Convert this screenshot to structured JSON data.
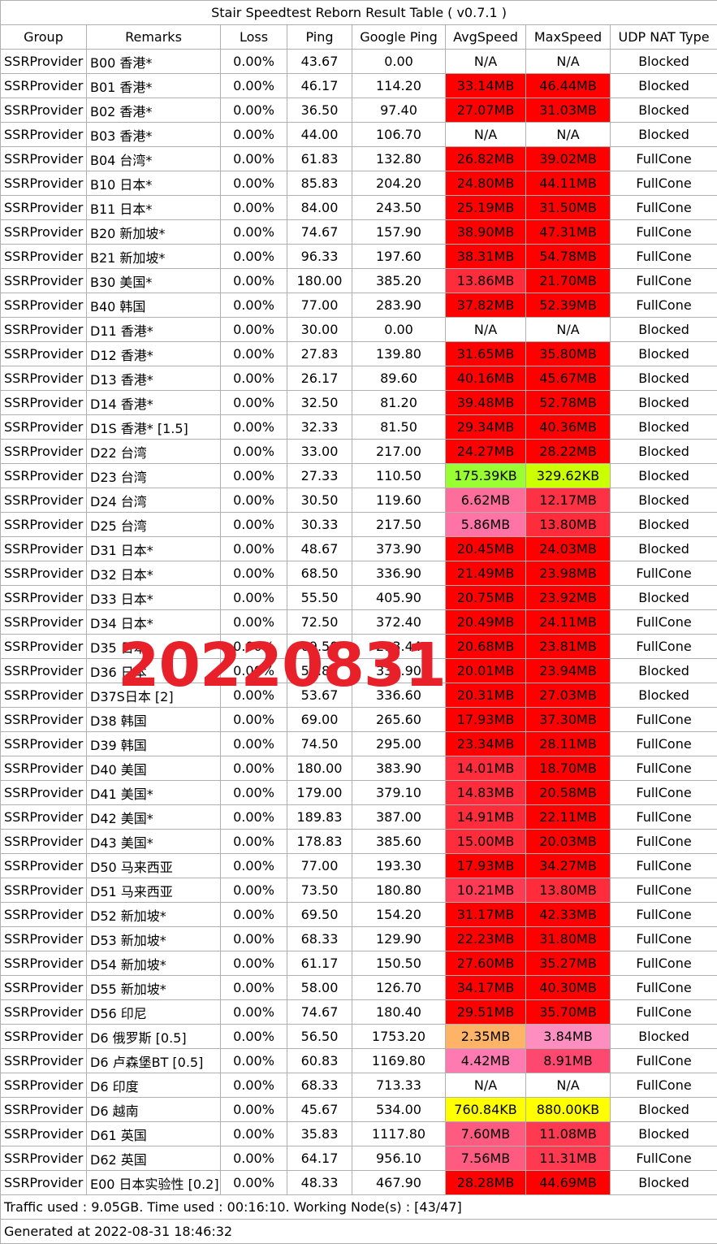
{
  "title": "Stair Speedtest Reborn Result Table ( v0.7.1 )",
  "columns": [
    "Group",
    "Remarks",
    "Loss",
    "Ping",
    "Google Ping",
    "AvgSpeed",
    "MaxSpeed",
    "UDP NAT Type"
  ],
  "rows": [
    {
      "group": "SSRProvider",
      "remarks": "B00 香港*",
      "loss": "0.00%",
      "ping": "43.67",
      "gping": "0.00",
      "avg": "N/A",
      "max": "N/A",
      "nat": "Blocked",
      "avg_color": "#ffffff",
      "max_color": "#ffffff"
    },
    {
      "group": "SSRProvider",
      "remarks": "B01 香港*",
      "loss": "0.00%",
      "ping": "46.17",
      "gping": "114.20",
      "avg": "33.14MB",
      "max": "46.44MB",
      "nat": "Blocked",
      "avg_color": "#ff0000",
      "max_color": "#ff0000"
    },
    {
      "group": "SSRProvider",
      "remarks": "B02 香港*",
      "loss": "0.00%",
      "ping": "36.50",
      "gping": "97.40",
      "avg": "27.07MB",
      "max": "31.03MB",
      "nat": "Blocked",
      "avg_color": "#ff0000",
      "max_color": "#ff0000"
    },
    {
      "group": "SSRProvider",
      "remarks": "B03 香港*",
      "loss": "0.00%",
      "ping": "44.00",
      "gping": "106.70",
      "avg": "N/A",
      "max": "N/A",
      "nat": "Blocked",
      "avg_color": "#ffffff",
      "max_color": "#ffffff"
    },
    {
      "group": "SSRProvider",
      "remarks": "B04 台湾*",
      "loss": "0.00%",
      "ping": "61.83",
      "gping": "132.80",
      "avg": "26.82MB",
      "max": "39.02MB",
      "nat": "FullCone",
      "avg_color": "#ff0000",
      "max_color": "#ff0000"
    },
    {
      "group": "SSRProvider",
      "remarks": "B10 日本*",
      "loss": "0.00%",
      "ping": "85.83",
      "gping": "204.20",
      "avg": "24.80MB",
      "max": "44.11MB",
      "nat": "FullCone",
      "avg_color": "#ff0000",
      "max_color": "#ff0000"
    },
    {
      "group": "SSRProvider",
      "remarks": "B11 日本*",
      "loss": "0.00%",
      "ping": "84.00",
      "gping": "243.50",
      "avg": "25.19MB",
      "max": "31.50MB",
      "nat": "FullCone",
      "avg_color": "#ff0000",
      "max_color": "#ff0000"
    },
    {
      "group": "SSRProvider",
      "remarks": "B20 新加坡*",
      "loss": "0.00%",
      "ping": "74.67",
      "gping": "157.90",
      "avg": "38.90MB",
      "max": "47.31MB",
      "nat": "FullCone",
      "avg_color": "#ff0000",
      "max_color": "#ff0000"
    },
    {
      "group": "SSRProvider",
      "remarks": "B21 新加坡*",
      "loss": "0.00%",
      "ping": "96.33",
      "gping": "197.60",
      "avg": "38.31MB",
      "max": "54.78MB",
      "nat": "FullCone",
      "avg_color": "#ff0000",
      "max_color": "#ff0000"
    },
    {
      "group": "SSRProvider",
      "remarks": "B30 美国*",
      "loss": "0.00%",
      "ping": "180.00",
      "gping": "385.20",
      "avg": "13.86MB",
      "max": "21.70MB",
      "nat": "FullCone",
      "avg_color": "#ff2c3c",
      "max_color": "#ff0000"
    },
    {
      "group": "SSRProvider",
      "remarks": "B40 韩国",
      "loss": "0.00%",
      "ping": "77.00",
      "gping": "283.90",
      "avg": "37.82MB",
      "max": "52.39MB",
      "nat": "FullCone",
      "avg_color": "#ff0000",
      "max_color": "#ff0000"
    },
    {
      "group": "SSRProvider",
      "remarks": "D11 香港*",
      "loss": "0.00%",
      "ping": "30.00",
      "gping": "0.00",
      "avg": "N/A",
      "max": "N/A",
      "nat": "Blocked",
      "avg_color": "#ffffff",
      "max_color": "#ffffff"
    },
    {
      "group": "SSRProvider",
      "remarks": "D12 香港*",
      "loss": "0.00%",
      "ping": "27.83",
      "gping": "139.80",
      "avg": "31.65MB",
      "max": "35.80MB",
      "nat": "Blocked",
      "avg_color": "#ff0000",
      "max_color": "#ff0000"
    },
    {
      "group": "SSRProvider",
      "remarks": "D13 香港*",
      "loss": "0.00%",
      "ping": "26.17",
      "gping": "89.60",
      "avg": "40.16MB",
      "max": "45.67MB",
      "nat": "Blocked",
      "avg_color": "#ff0000",
      "max_color": "#ff0000"
    },
    {
      "group": "SSRProvider",
      "remarks": "D14 香港*",
      "loss": "0.00%",
      "ping": "32.50",
      "gping": "81.20",
      "avg": "39.48MB",
      "max": "52.78MB",
      "nat": "Blocked",
      "avg_color": "#ff0000",
      "max_color": "#ff0000"
    },
    {
      "group": "SSRProvider",
      "remarks": "D1S 香港* [1.5]",
      "loss": "0.00%",
      "ping": "32.33",
      "gping": "81.50",
      "avg": "29.34MB",
      "max": "40.36MB",
      "nat": "Blocked",
      "avg_color": "#ff0000",
      "max_color": "#ff0000"
    },
    {
      "group": "SSRProvider",
      "remarks": "D22 台湾",
      "loss": "0.00%",
      "ping": "33.00",
      "gping": "217.00",
      "avg": "24.27MB",
      "max": "28.22MB",
      "nat": "Blocked",
      "avg_color": "#ff0000",
      "max_color": "#ff0000"
    },
    {
      "group": "SSRProvider",
      "remarks": "D23 台湾",
      "loss": "0.00%",
      "ping": "27.33",
      "gping": "110.50",
      "avg": "175.39KB",
      "max": "329.62KB",
      "nat": "Blocked",
      "avg_color": "#99ff33",
      "max_color": "#ccff00"
    },
    {
      "group": "SSRProvider",
      "remarks": "D24 台湾",
      "loss": "0.00%",
      "ping": "30.50",
      "gping": "119.60",
      "avg": "6.62MB",
      "max": "12.17MB",
      "nat": "Blocked",
      "avg_color": "#ff6e9a",
      "max_color": "#ff3245"
    },
    {
      "group": "SSRProvider",
      "remarks": "D25 台湾",
      "loss": "0.00%",
      "ping": "30.33",
      "gping": "217.50",
      "avg": "5.86MB",
      "max": "13.80MB",
      "nat": "Blocked",
      "avg_color": "#ff74a4",
      "max_color": "#ff2c3c"
    },
    {
      "group": "SSRProvider",
      "remarks": "D31 日本*",
      "loss": "0.00%",
      "ping": "48.67",
      "gping": "373.90",
      "avg": "20.45MB",
      "max": "24.03MB",
      "nat": "Blocked",
      "avg_color": "#ff0000",
      "max_color": "#ff0000"
    },
    {
      "group": "SSRProvider",
      "remarks": "D32 日本*",
      "loss": "0.00%",
      "ping": "68.50",
      "gping": "336.90",
      "avg": "21.49MB",
      "max": "23.98MB",
      "nat": "FullCone",
      "avg_color": "#ff0000",
      "max_color": "#ff0000"
    },
    {
      "group": "SSRProvider",
      "remarks": "D33 日本*",
      "loss": "0.00%",
      "ping": "55.50",
      "gping": "405.90",
      "avg": "20.75MB",
      "max": "23.92MB",
      "nat": "Blocked",
      "avg_color": "#ff0000",
      "max_color": "#ff0000"
    },
    {
      "group": "SSRProvider",
      "remarks": "D34 日本*",
      "loss": "0.00%",
      "ping": "72.50",
      "gping": "372.40",
      "avg": "20.49MB",
      "max": "24.11MB",
      "nat": "FullCone",
      "avg_color": "#ff0000",
      "max_color": "#ff0000"
    },
    {
      "group": "SSRProvider",
      "remarks": "D35 日本",
      "loss": "0.00%",
      "ping": "69.50",
      "gping": "293.44",
      "avg": "20.68MB",
      "max": "23.81MB",
      "nat": "FullCone",
      "avg_color": "#ff0000",
      "max_color": "#ff0000"
    },
    {
      "group": "SSRProvider",
      "remarks": "D36 日本",
      "loss": "0.00%",
      "ping": "58.83",
      "gping": "332.90",
      "avg": "20.01MB",
      "max": "23.94MB",
      "nat": "Blocked",
      "avg_color": "#ff0000",
      "max_color": "#ff0000"
    },
    {
      "group": "SSRProvider",
      "remarks": "D37S日本 [2]",
      "loss": "0.00%",
      "ping": "53.67",
      "gping": "336.60",
      "avg": "20.31MB",
      "max": "27.03MB",
      "nat": "Blocked",
      "avg_color": "#ff0000",
      "max_color": "#ff0000"
    },
    {
      "group": "SSRProvider",
      "remarks": "D38 韩国",
      "loss": "0.00%",
      "ping": "69.00",
      "gping": "265.60",
      "avg": "17.93MB",
      "max": "37.30MB",
      "nat": "FullCone",
      "avg_color": "#ff0000",
      "max_color": "#ff0000"
    },
    {
      "group": "SSRProvider",
      "remarks": "D39 韩国",
      "loss": "0.00%",
      "ping": "74.50",
      "gping": "295.00",
      "avg": "23.34MB",
      "max": "28.11MB",
      "nat": "FullCone",
      "avg_color": "#ff0000",
      "max_color": "#ff0000"
    },
    {
      "group": "SSRProvider",
      "remarks": "D40 美国",
      "loss": "0.00%",
      "ping": "180.00",
      "gping": "383.90",
      "avg": "14.01MB",
      "max": "18.70MB",
      "nat": "FullCone",
      "avg_color": "#ff2c3c",
      "max_color": "#ff0000"
    },
    {
      "group": "SSRProvider",
      "remarks": "D41 美国*",
      "loss": "0.00%",
      "ping": "179.00",
      "gping": "379.10",
      "avg": "14.83MB",
      "max": "20.58MB",
      "nat": "FullCone",
      "avg_color": "#ff2c3c",
      "max_color": "#ff0000"
    },
    {
      "group": "SSRProvider",
      "remarks": "D42 美国*",
      "loss": "0.00%",
      "ping": "189.83",
      "gping": "387.00",
      "avg": "14.91MB",
      "max": "22.11MB",
      "nat": "FullCone",
      "avg_color": "#ff2c3c",
      "max_color": "#ff0000"
    },
    {
      "group": "SSRProvider",
      "remarks": "D43 美国*",
      "loss": "0.00%",
      "ping": "178.83",
      "gping": "385.60",
      "avg": "15.00MB",
      "max": "20.03MB",
      "nat": "FullCone",
      "avg_color": "#ff2c3c",
      "max_color": "#ff0000"
    },
    {
      "group": "SSRProvider",
      "remarks": "D50 马来西亚",
      "loss": "0.00%",
      "ping": "77.00",
      "gping": "193.30",
      "avg": "17.93MB",
      "max": "34.27MB",
      "nat": "FullCone",
      "avg_color": "#ff0000",
      "max_color": "#ff0000"
    },
    {
      "group": "SSRProvider",
      "remarks": "D51 马来西亚",
      "loss": "0.00%",
      "ping": "73.50",
      "gping": "180.80",
      "avg": "10.21MB",
      "max": "13.80MB",
      "nat": "FullCone",
      "avg_color": "#ff3a55",
      "max_color": "#ff2c3c"
    },
    {
      "group": "SSRProvider",
      "remarks": "D52 新加坡*",
      "loss": "0.00%",
      "ping": "69.50",
      "gping": "154.20",
      "avg": "31.17MB",
      "max": "42.33MB",
      "nat": "FullCone",
      "avg_color": "#ff0000",
      "max_color": "#ff0000"
    },
    {
      "group": "SSRProvider",
      "remarks": "D53 新加坡*",
      "loss": "0.00%",
      "ping": "68.33",
      "gping": "129.90",
      "avg": "22.23MB",
      "max": "31.80MB",
      "nat": "FullCone",
      "avg_color": "#ff0000",
      "max_color": "#ff0000"
    },
    {
      "group": "SSRProvider",
      "remarks": "D54 新加坡*",
      "loss": "0.00%",
      "ping": "61.17",
      "gping": "150.50",
      "avg": "27.60MB",
      "max": "35.27MB",
      "nat": "FullCone",
      "avg_color": "#ff0000",
      "max_color": "#ff0000"
    },
    {
      "group": "SSRProvider",
      "remarks": "D55 新加坡*",
      "loss": "0.00%",
      "ping": "58.00",
      "gping": "126.70",
      "avg": "34.17MB",
      "max": "40.30MB",
      "nat": "FullCone",
      "avg_color": "#ff0000",
      "max_color": "#ff0000"
    },
    {
      "group": "SSRProvider",
      "remarks": "D56 印尼",
      "loss": "0.00%",
      "ping": "74.67",
      "gping": "180.40",
      "avg": "29.51MB",
      "max": "35.70MB",
      "nat": "FullCone",
      "avg_color": "#ff0000",
      "max_color": "#ff0000"
    },
    {
      "group": "SSRProvider",
      "remarks": "D6 俄罗斯 [0.5]",
      "loss": "0.00%",
      "ping": "56.50",
      "gping": "1753.20",
      "avg": "2.35MB",
      "max": "3.84MB",
      "nat": "Blocked",
      "avg_color": "#ffb366",
      "max_color": "#ff8ec0"
    },
    {
      "group": "SSRProvider",
      "remarks": "D6 卢森堡BT [0.5]",
      "loss": "0.00%",
      "ping": "60.83",
      "gping": "1169.80",
      "avg": "4.42MB",
      "max": "8.91MB",
      "nat": "FullCone",
      "avg_color": "#ff7ab0",
      "max_color": "#ff4870"
    },
    {
      "group": "SSRProvider",
      "remarks": "D6 印度",
      "loss": "0.00%",
      "ping": "68.33",
      "gping": "713.33",
      "avg": "N/A",
      "max": "N/A",
      "nat": "FullCone",
      "avg_color": "#ffffff",
      "max_color": "#ffffff"
    },
    {
      "group": "SSRProvider",
      "remarks": "D6 越南",
      "loss": "0.00%",
      "ping": "45.67",
      "gping": "534.00",
      "avg": "760.84KB",
      "max": "880.00KB",
      "nat": "Blocked",
      "avg_color": "#ffff00",
      "max_color": "#ffff00"
    },
    {
      "group": "SSRProvider",
      "remarks": "D61 英国",
      "loss": "0.00%",
      "ping": "35.83",
      "gping": "1117.80",
      "avg": "7.60MB",
      "max": "11.08MB",
      "nat": "Blocked",
      "avg_color": "#ff5a80",
      "max_color": "#ff3a50"
    },
    {
      "group": "SSRProvider",
      "remarks": "D62 英国",
      "loss": "0.00%",
      "ping": "64.17",
      "gping": "956.10",
      "avg": "7.56MB",
      "max": "11.31MB",
      "nat": "FullCone",
      "avg_color": "#ff5a80",
      "max_color": "#ff3a50"
    },
    {
      "group": "SSRProvider",
      "remarks": "E00 日本实验性 [0.2]",
      "loss": "0.00%",
      "ping": "48.33",
      "gping": "467.90",
      "avg": "28.28MB",
      "max": "44.69MB",
      "nat": "Blocked",
      "avg_color": "#ff0000",
      "max_color": "#ff0000"
    }
  ],
  "footer": {
    "traffic": "Traffic used : 9.05GB. Time used : 00:16:10. Working Node(s) : [43/47]",
    "generated": "Generated at 2022-08-31 18:46:32"
  },
  "watermark": "20220831"
}
